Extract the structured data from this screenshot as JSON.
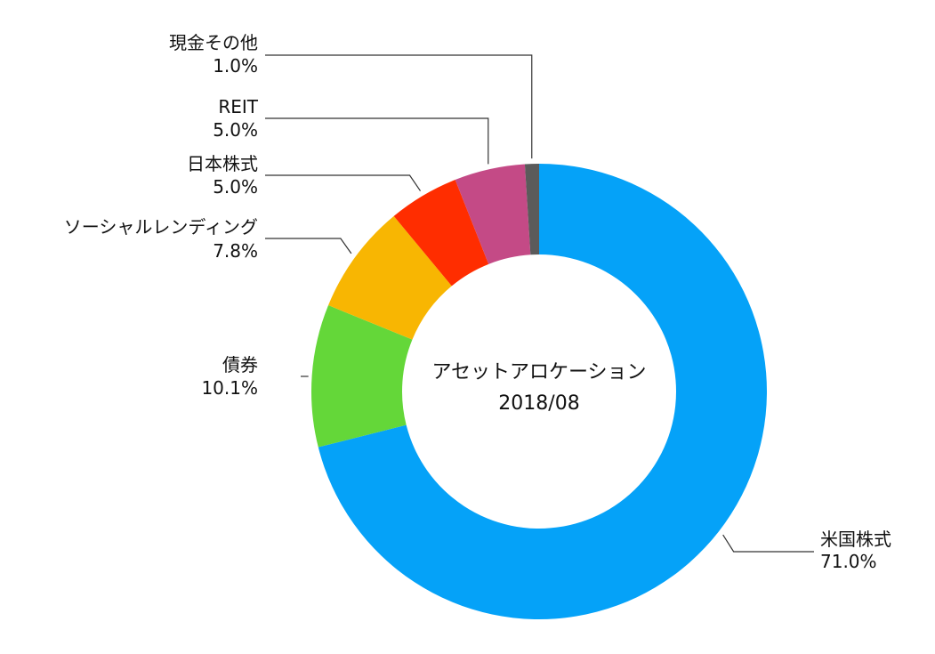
{
  "chart_data": {
    "type": "pie",
    "variant": "donut",
    "title": "アセットアロケーション",
    "subtitle": "2018/08",
    "slices": [
      {
        "label": "米国株式",
        "value": 71.0,
        "display": "71.0%",
        "color": "#05A2F8"
      },
      {
        "label": "債券",
        "value": 10.1,
        "display": "10.1%",
        "color": "#64D739"
      },
      {
        "label": "ソーシャルレンディング",
        "value": 7.8,
        "display": "7.8%",
        "color": "#F8B602"
      },
      {
        "label": "日本株式",
        "value": 5.0,
        "display": "5.0%",
        "color": "#FF2D00"
      },
      {
        "label": "REIT",
        "value": 5.0,
        "display": "5.0%",
        "color": "#C44A86"
      },
      {
        "label": "現金その他",
        "value": 1.0,
        "display": "1.0%",
        "color": "#5B5B5B"
      }
    ]
  }
}
